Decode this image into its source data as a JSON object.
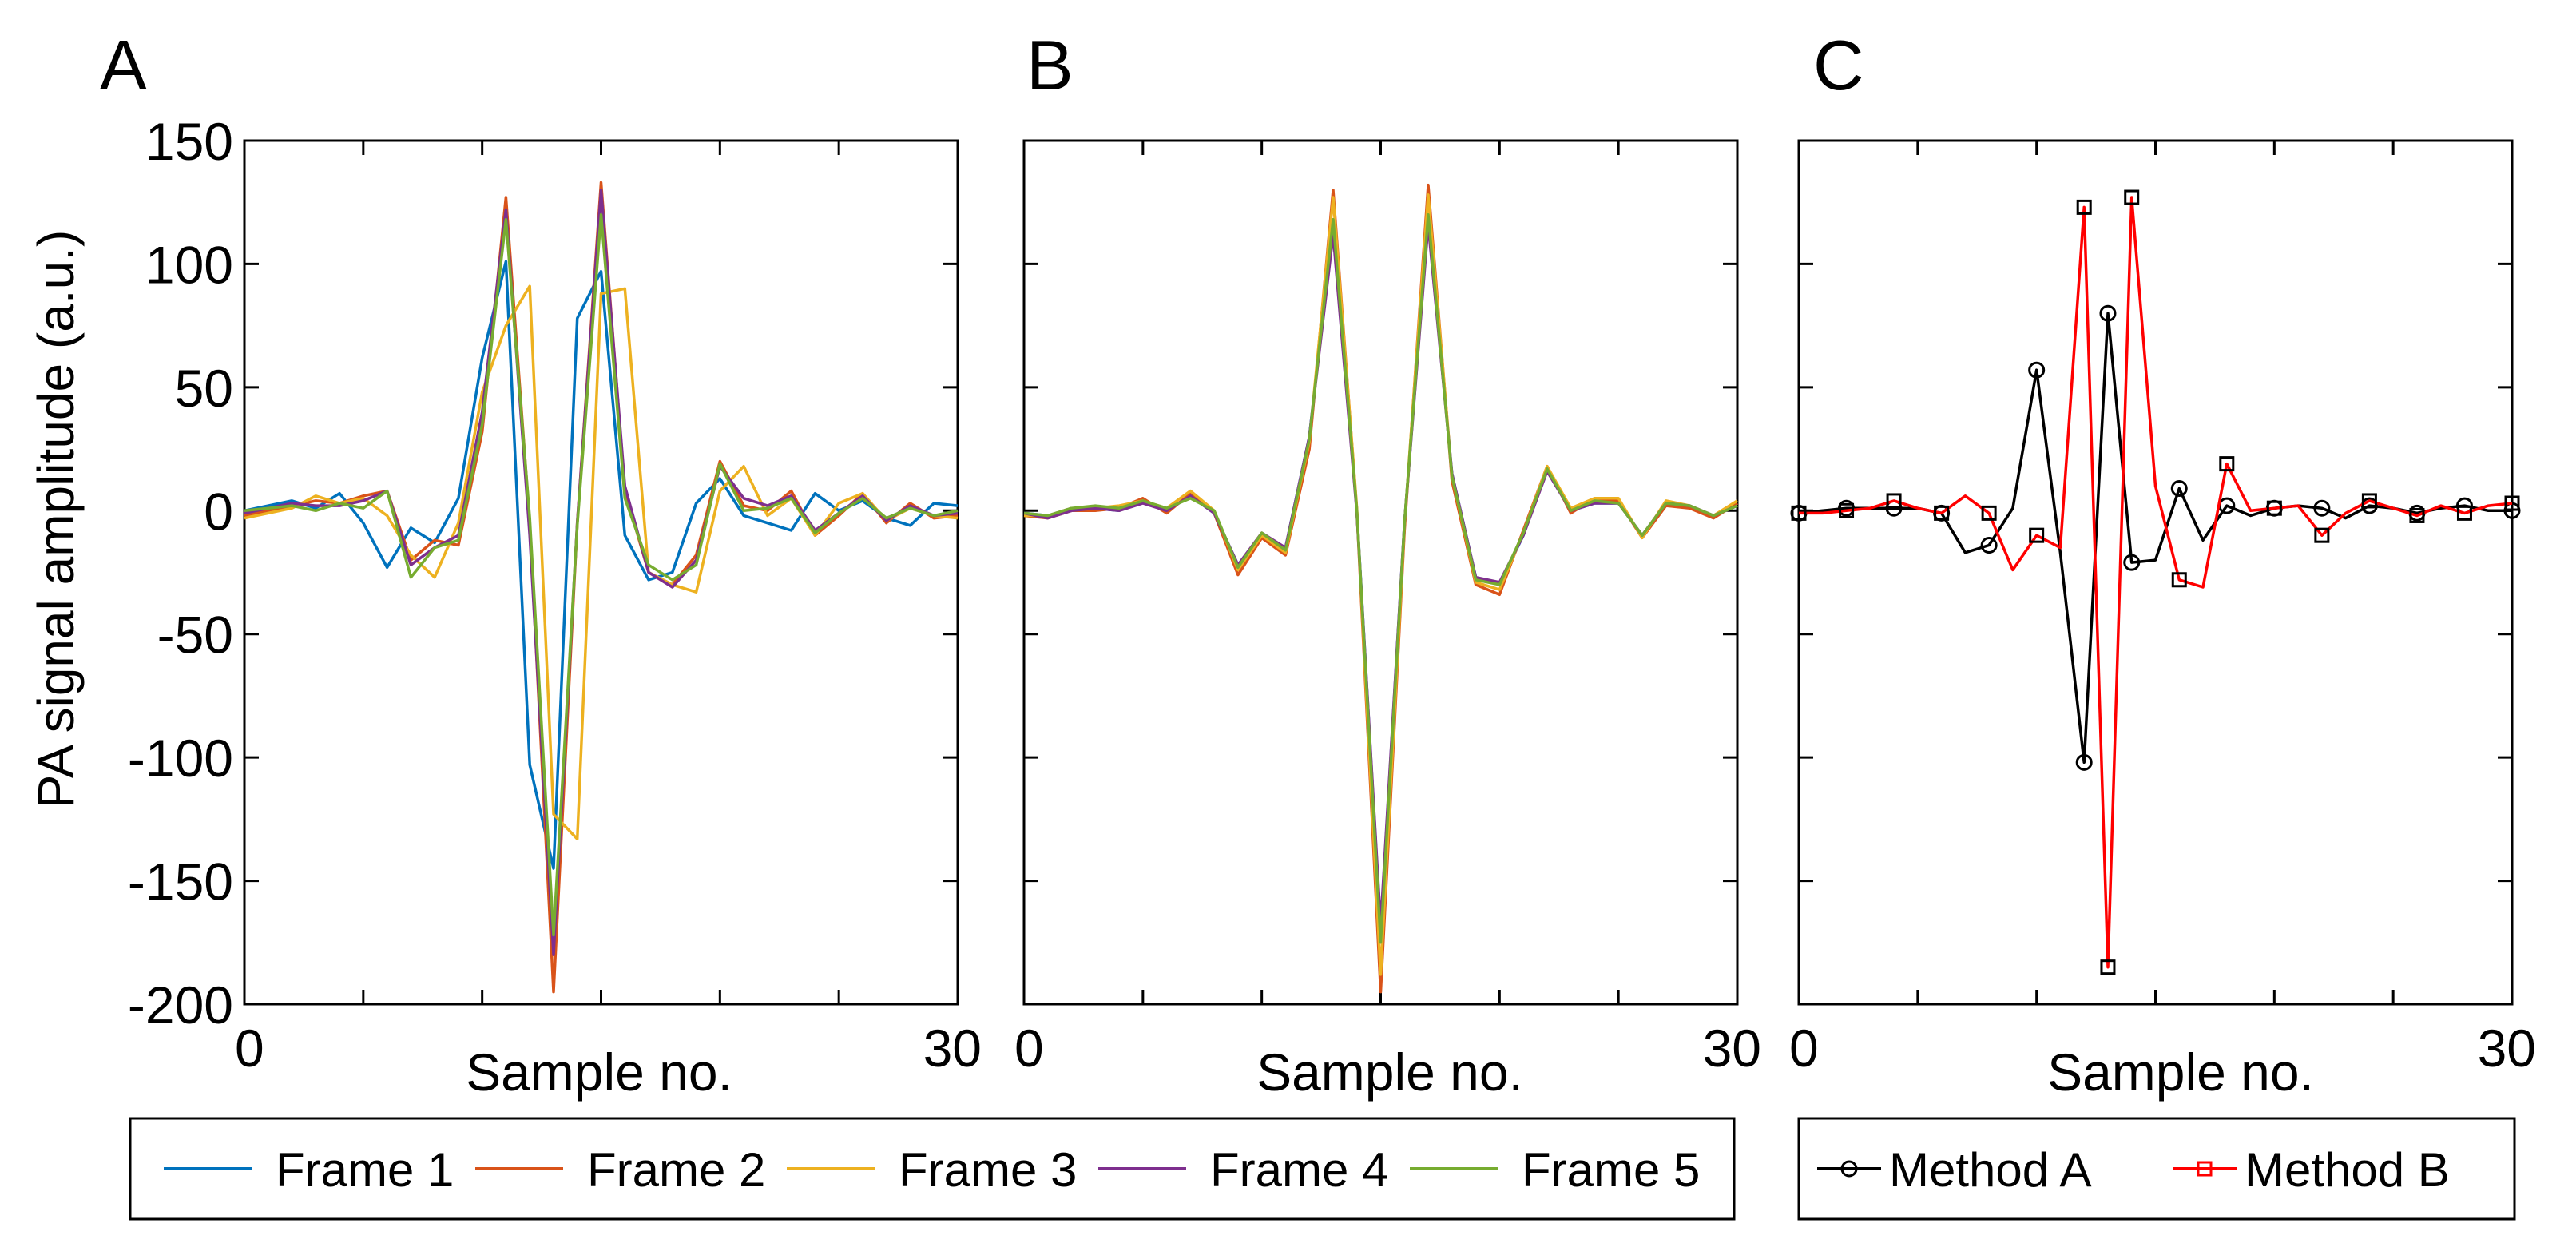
{
  "figure": {
    "ylabel": "PA signal amplitude (a.u.)",
    "legend_a": {
      "entries": [
        "Frame 1",
        "Frame 2",
        "Frame 3",
        "Frame 4",
        "Frame 5"
      ]
    },
    "legend_c": {
      "entries": [
        "Method A",
        "Method B"
      ]
    }
  },
  "chart_data": [
    {
      "type": "line",
      "panel_label": "A",
      "title": "",
      "xlabel": "Sample no.",
      "ylabel": "PA signal amplitude (a.u.)",
      "xlim": [
        0,
        30
      ],
      "ylim": [
        -200,
        150
      ],
      "x_ticks": [
        0,
        30
      ],
      "y_ticks": [
        150,
        100,
        50,
        0,
        -50,
        -100,
        -150,
        -200
      ],
      "grid": false,
      "legend": "below",
      "x": [
        0,
        1,
        2,
        3,
        4,
        5,
        6,
        7,
        8,
        9,
        10,
        11,
        12,
        13,
        14,
        15,
        16,
        17,
        18,
        19,
        20,
        21,
        22,
        23,
        24,
        25,
        26,
        27,
        28,
        29,
        30
      ],
      "series": [
        {
          "name": "Frame 1",
          "color": "#0072BD",
          "values": [
            0,
            2,
            4,
            1,
            7,
            -5,
            -23,
            -7,
            -13,
            5,
            62,
            101,
            -103,
            -145,
            78,
            97,
            -10,
            -28,
            -25,
            3,
            13,
            -2,
            -5,
            -8,
            7,
            0,
            4,
            -3,
            -6,
            3,
            2
          ]
        },
        {
          "name": "Frame 2",
          "color": "#D95319",
          "values": [
            -2,
            0,
            2,
            4,
            3,
            6,
            8,
            -20,
            -12,
            -14,
            32,
            127,
            -5,
            -195,
            -5,
            133,
            8,
            -25,
            -30,
            -18,
            20,
            2,
            0,
            8,
            -10,
            -2,
            7,
            -5,
            3,
            -3,
            -2
          ]
        },
        {
          "name": "Frame 3",
          "color": "#EDB120",
          "values": [
            -3,
            -1,
            1,
            6,
            3,
            5,
            -2,
            -18,
            -27,
            -5,
            48,
            75,
            91,
            -123,
            -133,
            88,
            90,
            -25,
            -30,
            -33,
            8,
            18,
            -2,
            5,
            -10,
            3,
            7,
            -4,
            1,
            -2,
            -3
          ]
        },
        {
          "name": "Frame 4",
          "color": "#7E2F8E",
          "values": [
            -1,
            1,
            3,
            2,
            2,
            4,
            8,
            -22,
            -15,
            -10,
            40,
            122,
            -10,
            -180,
            -5,
            130,
            10,
            -25,
            -31,
            -20,
            18,
            5,
            2,
            6,
            -8,
            -1,
            6,
            -4,
            2,
            -2,
            -1
          ]
        },
        {
          "name": "Frame 5",
          "color": "#77AC30",
          "values": [
            0,
            1,
            2,
            0,
            3,
            1,
            8,
            -27,
            -15,
            -12,
            35,
            118,
            -3,
            -172,
            -6,
            120,
            5,
            -22,
            -28,
            -22,
            19,
            0,
            1,
            5,
            -9,
            -1,
            5,
            -3,
            1,
            -2,
            0
          ]
        }
      ]
    },
    {
      "type": "line",
      "panel_label": "B",
      "title": "",
      "xlabel": "Sample no.",
      "ylabel": "",
      "xlim": [
        0,
        30
      ],
      "ylim": [
        -200,
        150
      ],
      "x_ticks": [
        0,
        30
      ],
      "y_ticks": [
        150,
        100,
        50,
        0,
        -50,
        -100,
        -150,
        -200
      ],
      "grid": false,
      "legend": "shared with panel A",
      "x": [
        0,
        1,
        2,
        3,
        4,
        5,
        6,
        7,
        8,
        9,
        10,
        11,
        12,
        13,
        14,
        15,
        16,
        17,
        18,
        19,
        20,
        21,
        22,
        23,
        24,
        25,
        26,
        27,
        28,
        29,
        30
      ],
      "series": [
        {
          "name": "Frame 1",
          "color": "#0072BD",
          "values": [
            -1,
            -2,
            1,
            1,
            0,
            4,
            0,
            6,
            -1,
            -22,
            -10,
            -15,
            30,
            115,
            0,
            -170,
            -5,
            118,
            15,
            -27,
            -30,
            -10,
            17,
            0,
            3,
            3,
            -10,
            3,
            2,
            -2,
            2
          ]
        },
        {
          "name": "Frame 2",
          "color": "#D95319",
          "values": [
            -2,
            -3,
            0,
            0,
            1,
            5,
            -1,
            7,
            -1,
            -26,
            -11,
            -18,
            25,
            130,
            0,
            -195,
            -8,
            132,
            12,
            -30,
            -34,
            -8,
            18,
            -1,
            5,
            4,
            -11,
            2,
            1,
            -3,
            3
          ]
        },
        {
          "name": "Frame 3",
          "color": "#EDB120",
          "values": [
            -2,
            -2,
            1,
            1,
            2,
            4,
            1,
            8,
            0,
            -24,
            -10,
            -17,
            28,
            127,
            1,
            -188,
            -6,
            128,
            14,
            -29,
            -32,
            -9,
            18,
            1,
            5,
            5,
            -11,
            4,
            2,
            -2,
            4
          ]
        },
        {
          "name": "Frame 4",
          "color": "#7E2F8E",
          "values": [
            -1,
            -3,
            0,
            1,
            0,
            3,
            0,
            6,
            -1,
            -22,
            -9,
            -15,
            30,
            112,
            -1,
            -168,
            -5,
            116,
            15,
            -27,
            -29,
            -10,
            16,
            0,
            3,
            3,
            -10,
            3,
            2,
            -2,
            2
          ]
        },
        {
          "name": "Frame 5",
          "color": "#77AC30",
          "values": [
            -1,
            -2,
            1,
            2,
            1,
            4,
            1,
            5,
            0,
            -23,
            -9,
            -16,
            29,
            118,
            0,
            -175,
            -5,
            120,
            14,
            -28,
            -30,
            -9,
            17,
            0,
            4,
            3,
            -10,
            3,
            2,
            -2,
            2
          ]
        }
      ]
    },
    {
      "type": "line",
      "panel_label": "C",
      "title": "",
      "xlabel": "Sample no.",
      "ylabel": "",
      "xlim": [
        0,
        30
      ],
      "ylim": [
        -200,
        150
      ],
      "x_ticks": [
        0,
        30
      ],
      "y_ticks": [
        150,
        100,
        50,
        0,
        -50,
        -100,
        -150,
        -200
      ],
      "grid": false,
      "legend": "below",
      "x": [
        0,
        1,
        2,
        3,
        4,
        5,
        6,
        7,
        8,
        9,
        10,
        11,
        12,
        13,
        14,
        15,
        16,
        17,
        18,
        19,
        20,
        21,
        22,
        23,
        24,
        25,
        26,
        27,
        28,
        29,
        30
      ],
      "series": [
        {
          "name": "Method A",
          "color": "#000000",
          "marker": "circle",
          "values": [
            -1,
            0,
            1,
            1,
            1,
            1,
            -1,
            -17,
            -14,
            1,
            57,
            -17,
            -102,
            80,
            -21,
            -20,
            9,
            -12,
            2,
            -2,
            1,
            2,
            1,
            -3,
            2,
            1,
            -1,
            1,
            2,
            0,
            0
          ]
        },
        {
          "name": "Method B",
          "color": "#FF0000",
          "marker": "square",
          "values": [
            -1,
            -1,
            0,
            1,
            4,
            1,
            -1,
            6,
            -1,
            -24,
            -10,
            -15,
            123,
            -185,
            127,
            10,
            -28,
            -31,
            19,
            0,
            1,
            2,
            -10,
            -1,
            4,
            1,
            -2,
            2,
            -1,
            2,
            3
          ]
        }
      ]
    }
  ]
}
